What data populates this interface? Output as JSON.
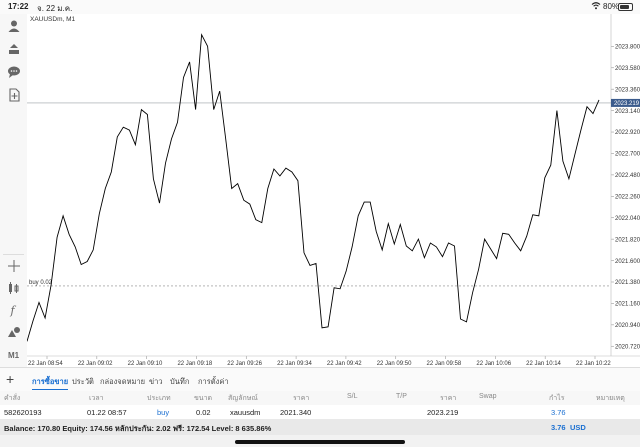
{
  "status_bar": {
    "time": "17:22",
    "date": "จ. 22 ม.ค.",
    "battery": "80%",
    "battery_level": 0.8
  },
  "chart": {
    "symbol_title": "XAUUSDm, M1",
    "current_price": "2023.219",
    "bid_label": "buy 0.02",
    "price_ticks": [
      "2023.800",
      "2023.580",
      "2023.360",
      "2023.140",
      "2022.920",
      "2022.700",
      "2022.480",
      "2022.260",
      "2022.040",
      "2021.820",
      "2021.600",
      "2021.380",
      "2021.160",
      "2020.940",
      "2020.720"
    ],
    "time_ticks": [
      "22 Jan 08:54",
      "22 Jan 09:02",
      "22 Jan 09:10",
      "22 Jan 09:18",
      "22 Jan 09:26",
      "22 Jan 09:34",
      "22 Jan 09:42",
      "22 Jan 09:50",
      "22 Jan 09:58",
      "22 Jan 10:06",
      "22 Jan 10:14",
      "22 Jan 10:22"
    ],
    "colors": {
      "line": "#000000",
      "grid": "#ececec",
      "price_line": "#9aa0a6",
      "price_label_bg": "#3b5b8c",
      "order_line": "#888888"
    }
  },
  "chart_data": {
    "type": "line",
    "title": "XAUUSDm, M1",
    "xlabel": "",
    "ylabel": "",
    "ylim": [
      2020.62,
      2024.05
    ],
    "x_ticks": [
      "22 Jan 08:54",
      "22 Jan 09:02",
      "22 Jan 09:10",
      "22 Jan 09:18",
      "22 Jan 09:26",
      "22 Jan 09:34",
      "22 Jan 09:42",
      "22 Jan 09:50",
      "22 Jan 09:58",
      "22 Jan 10:06",
      "22 Jan 10:14",
      "22 Jan 10:22"
    ],
    "series": [
      {
        "values": [
          2020.77,
          2020.98,
          2021.17,
          2021.01,
          2021.35,
          2021.84,
          2022.06,
          2021.87,
          2021.74,
          2021.56,
          2021.59,
          2021.71,
          2022.08,
          2022.34,
          2022.51,
          2022.87,
          2022.97,
          2022.94,
          2022.79,
          2023.15,
          2023.1,
          2022.44,
          2022.19,
          2022.6,
          2022.85,
          2023.02,
          2023.48,
          2023.64,
          2023.15,
          2023.92,
          2023.8,
          2023.15,
          2023.34,
          2022.85,
          2022.34,
          2022.39,
          2022.22,
          2022.18,
          2022.02,
          2021.99,
          2022.34,
          2022.54,
          2022.47,
          2022.55,
          2022.51,
          2022.42,
          2021.68,
          2021.55,
          2021.57,
          2020.91,
          2020.92,
          2021.32,
          2021.31,
          2021.49,
          2021.74,
          2022.06,
          2022.2,
          2022.2,
          2021.9,
          2021.71,
          2021.98,
          2021.77,
          2021.97,
          2021.75,
          2021.7,
          2021.82,
          2021.63,
          2021.78,
          2021.74,
          2021.64,
          2021.78,
          2021.75,
          2021.0,
          2020.97,
          2021.27,
          2021.51,
          2021.82,
          2021.72,
          2021.62,
          2021.88,
          2021.87,
          2021.78,
          2021.7,
          2021.85,
          2022.07,
          2022.06,
          2022.45,
          2022.58,
          2023.14,
          2022.62,
          2022.44,
          2022.69,
          2022.94,
          2023.18,
          2023.11,
          2023.25
        ]
      }
    ]
  },
  "toolbar": {
    "icons": [
      "person-icon",
      "trade-icon",
      "chat-icon",
      "add-chart-icon",
      "crosshair-icon",
      "indicators-icon",
      "function-icon",
      "objects-icon",
      "timeframe-label"
    ],
    "timeframe": "M1"
  },
  "bottom_nav": {
    "tabs": [
      "การซื้อขาย",
      "ประวัติ",
      "กล่องจดหมาย",
      "ข่าว",
      "บันทึก",
      "การตั้งค่า"
    ]
  },
  "table": {
    "headers": [
      "คำสั่ง",
      "เวลา",
      "ประเภท",
      "ขนาด",
      "สัญลักษณ์",
      "ราคา",
      "S/L",
      "T/P",
      "ราคา",
      "Swap",
      "กำไร",
      "หมายเหตุ"
    ],
    "row": {
      "ticket": "582620193",
      "time": "01.22 08:57",
      "type": "buy",
      "volume": "0.02",
      "symbol": "xauusdm",
      "open_price": "2021.340",
      "sl": "",
      "tp": "",
      "price": "2023.219",
      "swap": "",
      "profit": "3.76",
      "comment": ""
    }
  },
  "balance": {
    "summary": "Balance: 170.80 Equity: 174.56 หลักประกัน: 2.02 ฟรี: 172.54 Level: 8 635.86%",
    "profit": "3.76",
    "currency": "USD"
  }
}
